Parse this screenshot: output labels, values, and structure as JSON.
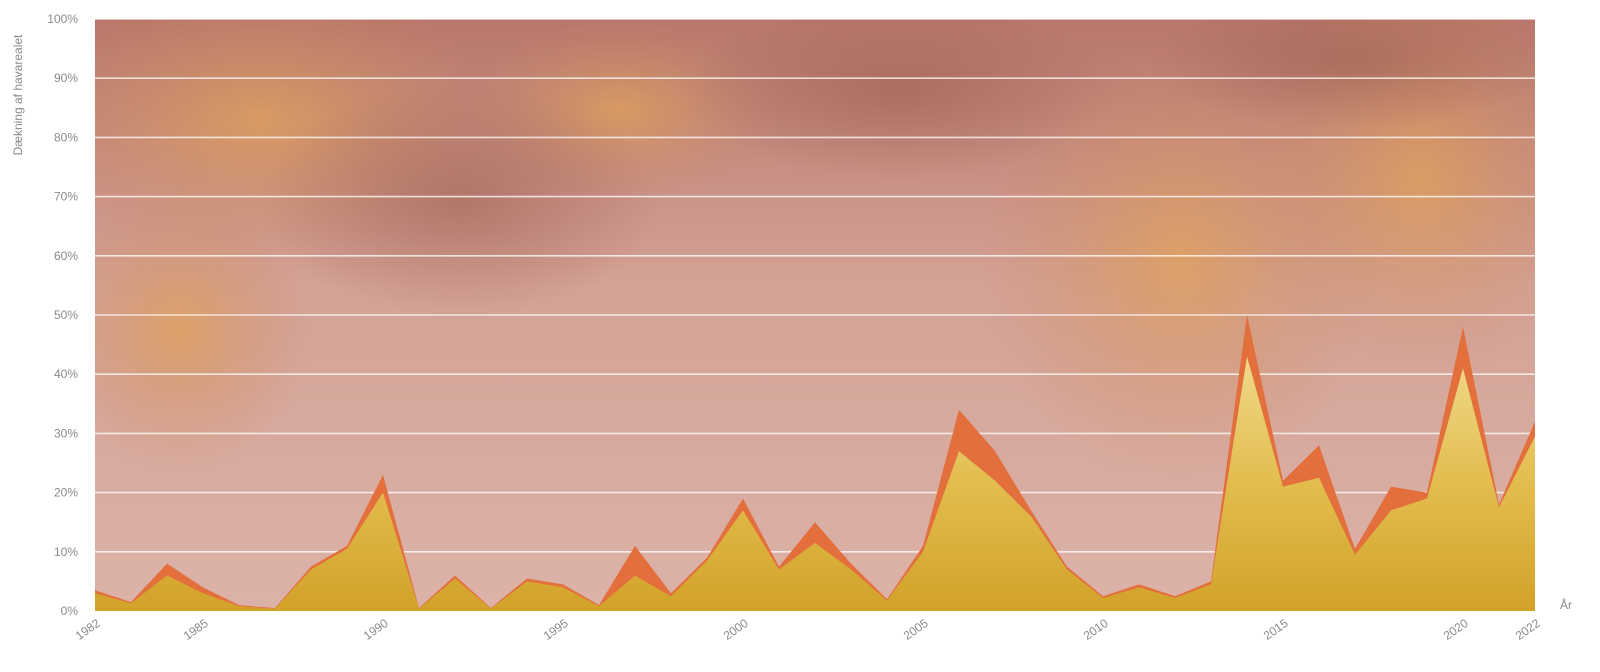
{
  "chart_data": {
    "type": "area",
    "title": "",
    "xlabel": "År",
    "ylabel": "Dækning af havarealet",
    "xlim": [
      1982,
      2022
    ],
    "ylim": [
      0,
      100
    ],
    "y_unit": "%",
    "grid": true,
    "y_ticks": [
      "0%",
      "10%",
      "20%",
      "30%",
      "40%",
      "50%",
      "60%",
      "70%",
      "80%",
      "90%",
      "100%"
    ],
    "x_ticks": [
      "1982",
      "1985",
      "1990",
      "1995",
      "2000",
      "2005",
      "2010",
      "2015",
      "2020",
      "2022"
    ],
    "x": [
      1982,
      1983,
      1984,
      1985,
      1986,
      1987,
      1988,
      1989,
      1990,
      1991,
      1992,
      1993,
      1994,
      1995,
      1996,
      1997,
      1998,
      1999,
      2000,
      2001,
      2002,
      2003,
      2004,
      2005,
      2006,
      2007,
      2008,
      2009,
      2010,
      2011,
      2012,
      2013,
      2014,
      2015,
      2016,
      2017,
      2018,
      2019,
      2020,
      2021,
      2022
    ],
    "series": [
      {
        "color": "#e36f3c",
        "values": [
          3.5,
          1.5,
          8.0,
          4.0,
          1.0,
          0.5,
          7.5,
          11.0,
          23.0,
          0.5,
          6.0,
          0.5,
          5.5,
          4.5,
          1.0,
          11.0,
          3.0,
          9.0,
          19.0,
          7.5,
          15.0,
          8.0,
          2.0,
          11.0,
          34.0,
          27.0,
          17.0,
          7.5,
          2.5,
          4.5,
          2.5,
          5.0,
          50.0,
          22.0,
          28.0,
          10.5,
          21.0,
          20.0,
          48.0,
          18.0,
          32.0
        ]
      },
      {
        "color": "#dcae36",
        "values": [
          3.0,
          1.3,
          6.0,
          3.0,
          0.8,
          0.4,
          7.0,
          10.5,
          20.0,
          0.4,
          5.5,
          0.4,
          5.0,
          4.0,
          0.8,
          6.0,
          2.5,
          8.5,
          17.0,
          7.0,
          11.5,
          7.0,
          1.8,
          10.0,
          27.0,
          22.0,
          16.0,
          7.0,
          2.2,
          4.0,
          2.2,
          4.5,
          43.0,
          21.0,
          22.5,
          9.5,
          17.0,
          19.0,
          41.0,
          17.5,
          29.5
        ]
      }
    ]
  }
}
